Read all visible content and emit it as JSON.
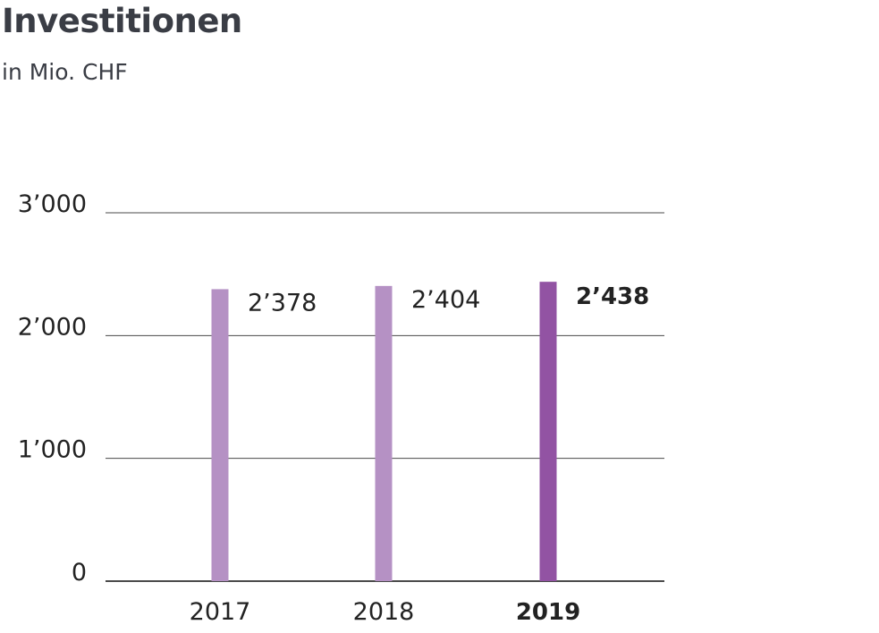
{
  "chart_data": {
    "type": "bar",
    "title": "Investitionen",
    "subtitle": "in Mio. CHF",
    "xlabel": "",
    "ylabel": "",
    "categories": [
      "2017",
      "2018",
      "2019"
    ],
    "values": [
      2378,
      2404,
      2438
    ],
    "value_labels": [
      "2’378",
      "2’404",
      "2’438"
    ],
    "highlight_index": 2,
    "ylim": [
      0,
      3000
    ],
    "yticks": [
      0,
      1000,
      2000,
      3000
    ],
    "ytick_labels": [
      "0",
      "1’000",
      "2’000",
      "3’000"
    ],
    "grid": true,
    "legend": "none",
    "colors": {
      "bar": "#b591c4",
      "bar_highlight": "#9253a3",
      "gridline": "#4a4a4a",
      "text": "#222222",
      "title": "#3a3d45"
    }
  }
}
